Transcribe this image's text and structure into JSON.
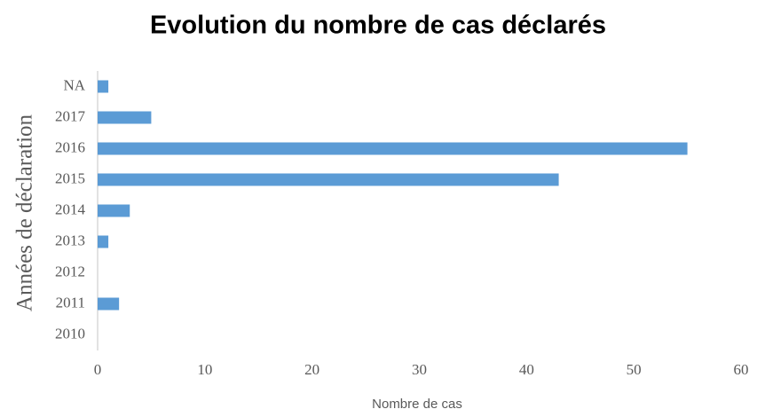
{
  "chart_data": {
    "type": "bar",
    "orientation": "horizontal",
    "title": "Evolution du nombre de cas déclarés",
    "xlabel": "Nombre de cas",
    "ylabel": "Années de déclaration",
    "categories": [
      "2010",
      "2011",
      "2012",
      "2013",
      "2014",
      "2015",
      "2016",
      "2017",
      "NA"
    ],
    "values": [
      0,
      2,
      0,
      1,
      3,
      43,
      55,
      5,
      1
    ],
    "color": "#5b9bd5",
    "xlim": [
      0,
      60
    ],
    "xticks": [
      0,
      10,
      20,
      30,
      40,
      50,
      60
    ],
    "grid": false
  }
}
